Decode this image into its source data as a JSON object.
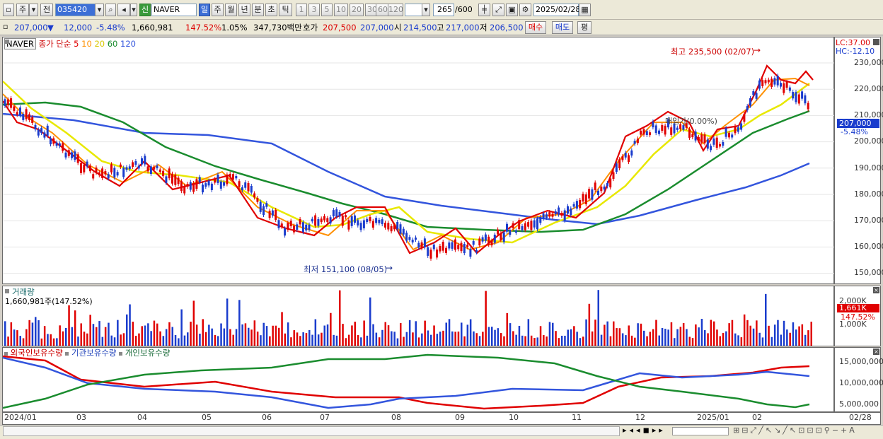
{
  "toolbar": {
    "period_label": "주",
    "prev_label": "전",
    "code": "035420",
    "name": "NAVER",
    "credit_label": "신",
    "periods": [
      "일",
      "주",
      "월",
      "년",
      "분",
      "초",
      "틱"
    ],
    "minute_steps": [
      "1",
      "3",
      "5",
      "10",
      "20",
      "30",
      "60",
      "120"
    ],
    "count": "265",
    "count_max": "/600",
    "date": "2025/02/28"
  },
  "quote": {
    "price": "207,000",
    "arrow": "▼",
    "change": "12,000",
    "change_rate": "-5.48%",
    "volume": "1,660,981",
    "volume_rate": "147.52%",
    "turnover_rate": "1.05%",
    "amount": "347,730백만",
    "ask_label": "호가",
    "ask": "207,500",
    "bid": "207,000",
    "open_label": "시",
    "open": "214,500",
    "high_label": "고",
    "high": "217,000",
    "low_label": "저",
    "low": "206,500",
    "buy_label": "매수",
    "sell_label": "매도",
    "eval_label": "평"
  },
  "price_pane": {
    "legend_name": "NAVER",
    "legend_close": "종가 단순",
    "ma_periods": [
      "5",
      "10",
      "20",
      "60",
      "120"
    ],
    "ma_colors": [
      "#e00000",
      "#ff9000",
      "#e8e800",
      "#1a8c2e",
      "#3355dd"
    ],
    "y_ticks": [
      "230,000",
      "220,000",
      "210,000",
      "200,000",
      "190,000",
      "180,000",
      "170,000",
      "160,000",
      "150,000"
    ],
    "high_note": "최고 235,500 (02/07)",
    "low_note": "최저 151,100 (08/05)",
    "mid_note": "매입가(0.00%)",
    "lc": "LC:37.00",
    "hc": "HC:-12.10",
    "cur_price": "207,000",
    "cur_rate": "-5.48%"
  },
  "volume_pane": {
    "title": "거래량",
    "value": "1,660,981주(147.52%)",
    "y_ticks": [
      "2,000K",
      "1,000K"
    ],
    "cur_value": "1,661K",
    "cur_rate": "147.52%"
  },
  "holding_pane": {
    "legend": [
      "외국인보유수량",
      "기관보유수량",
      "개인보유수량"
    ],
    "colors": [
      "#e00000",
      "#3355dd",
      "#1a8c2e"
    ],
    "y_ticks": [
      "15,000,000",
      "10,000,000",
      "5,000,000"
    ]
  },
  "x_axis": {
    "labels": [
      "2024/01",
      "03",
      "04",
      "05",
      "06",
      "07",
      "08",
      "09",
      "10",
      "11",
      "12",
      "2025/01",
      "02",
      "02/28"
    ]
  }
}
